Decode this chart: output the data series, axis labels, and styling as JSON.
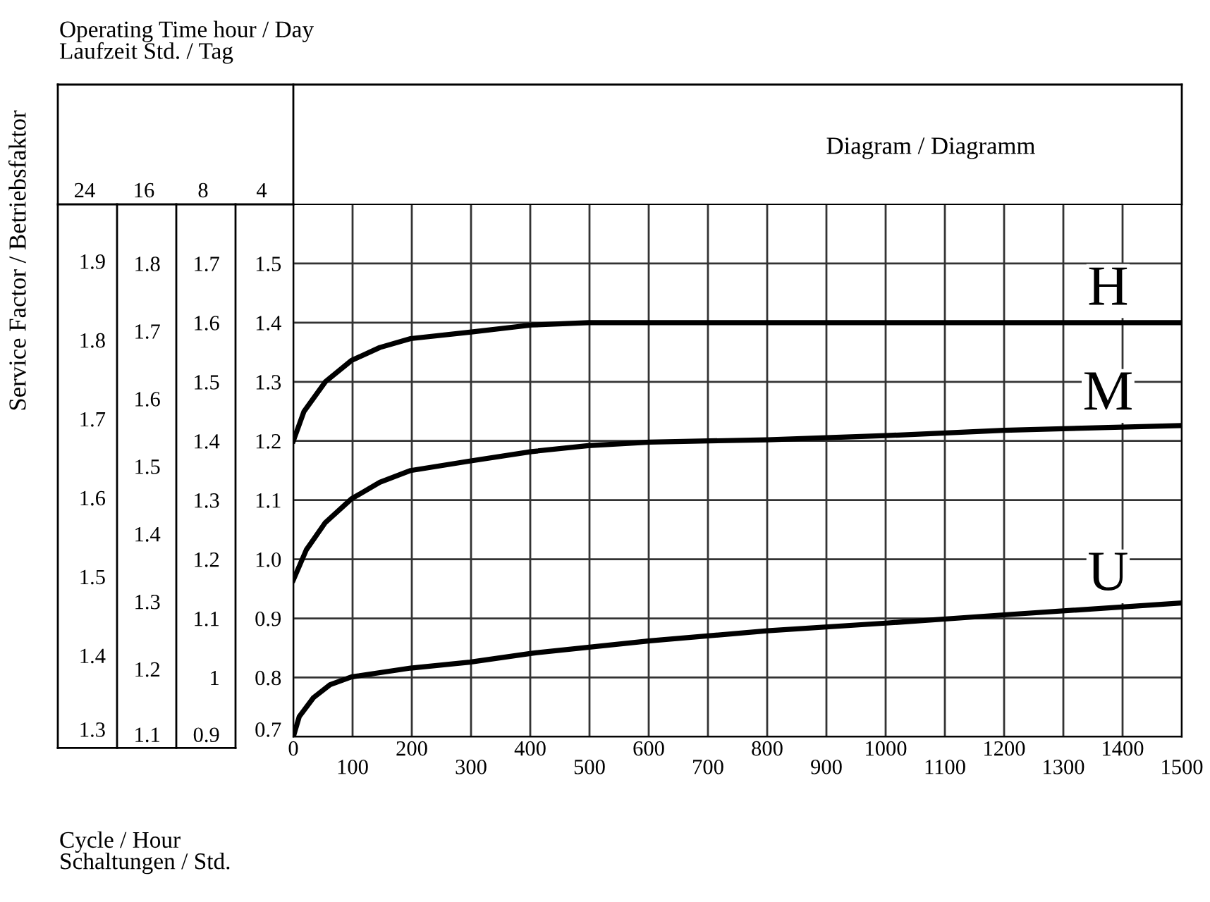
{
  "chart_data": {
    "type": "line",
    "title": "Diagram / Diagramm",
    "xlabel": "Cycle / Hour\nSchaltungen / Std.",
    "ylabel": "4",
    "y2label": "8",
    "y3label": "16",
    "annotations": [
      "Operating Time hour / Day\nLaufzeit Std. / Tag",
      "Service Factor / Betriebsfaktor",
      "24",
      "1.3",
      "1.4",
      "1.5",
      "1.6",
      "1.7",
      "1.8",
      "1.9"
    ],
    "xlim": [
      0,
      1500
    ],
    "xticks": [
      0,
      {
        "value": 100,
        "label": null
      },
      200,
      {
        "value": 300,
        "label": null
      },
      400,
      {
        "value": 500,
        "label": null
      },
      600,
      {
        "value": 700,
        "label": null
      },
      800,
      {
        "value": 900,
        "label": null
      },
      1000,
      {
        "value": 1100,
        "label": null
      },
      1200,
      {
        "value": 1300,
        "label": null
      },
      1400,
      {
        "value": 1500,
        "label": null
      }
    ],
    "x2lim": [
      0,
      1500
    ],
    "x2ticks": [
      100,
      300,
      500,
      700,
      900,
      1100,
      1300,
      1500
    ],
    "ylim": [
      0.7,
      1.6
    ],
    "yticks": [
      0.7,
      0.8,
      0.9,
      {
        "value": 1.0,
        "label": "1.0"
      },
      1.1,
      1.2,
      1.3,
      1.4,
      1.5
    ],
    "y2lim": [
      0.9,
      1.8
    ],
    "y2ticks": [
      0.9,
      1,
      1.1,
      1.2,
      1.3,
      1.4,
      1.5,
      1.6,
      1.7
    ],
    "y3lim": [
      1.1,
      1.8875
    ],
    "y3ticks": [
      1.1,
      1.2,
      1.3,
      1.4,
      1.5,
      1.6,
      1.7,
      1.8
    ],
    "grid": true,
    "marker": "none",
    "line_style": "solid",
    "series": [
      {
        "name": "H",
        "color": "#000000",
        "x": [
          0,
          18,
          54,
          98,
          146,
          198,
          298,
          402,
          498,
          600,
          1500
        ],
        "values": [
          1.2,
          1.25,
          1.3,
          1.336,
          1.358,
          1.373,
          1.384,
          1.396,
          1.4,
          1.4,
          1.4
        ]
      },
      {
        "name": "M",
        "color": "#000000",
        "x": [
          0,
          22,
          54,
          98,
          146,
          198,
          298,
          402,
          498,
          602,
          800,
          1000,
          1200,
          1500
        ],
        "values": [
          0.965,
          1.016,
          1.062,
          1.102,
          1.13,
          1.15,
          1.166,
          1.182,
          1.192,
          1.198,
          1.202,
          1.209,
          1.218,
          1.226
        ]
      },
      {
        "name": "U",
        "color": "#000000",
        "x": [
          0,
          10,
          34,
          62,
          98,
          198,
          298,
          402,
          602,
          800,
          1000,
          1200,
          1500
        ],
        "values": [
          0.7,
          0.734,
          0.766,
          0.788,
          0.801,
          0.816,
          0.826,
          0.841,
          0.862,
          0.879,
          0.892,
          0.906,
          0.926
        ]
      }
    ]
  }
}
